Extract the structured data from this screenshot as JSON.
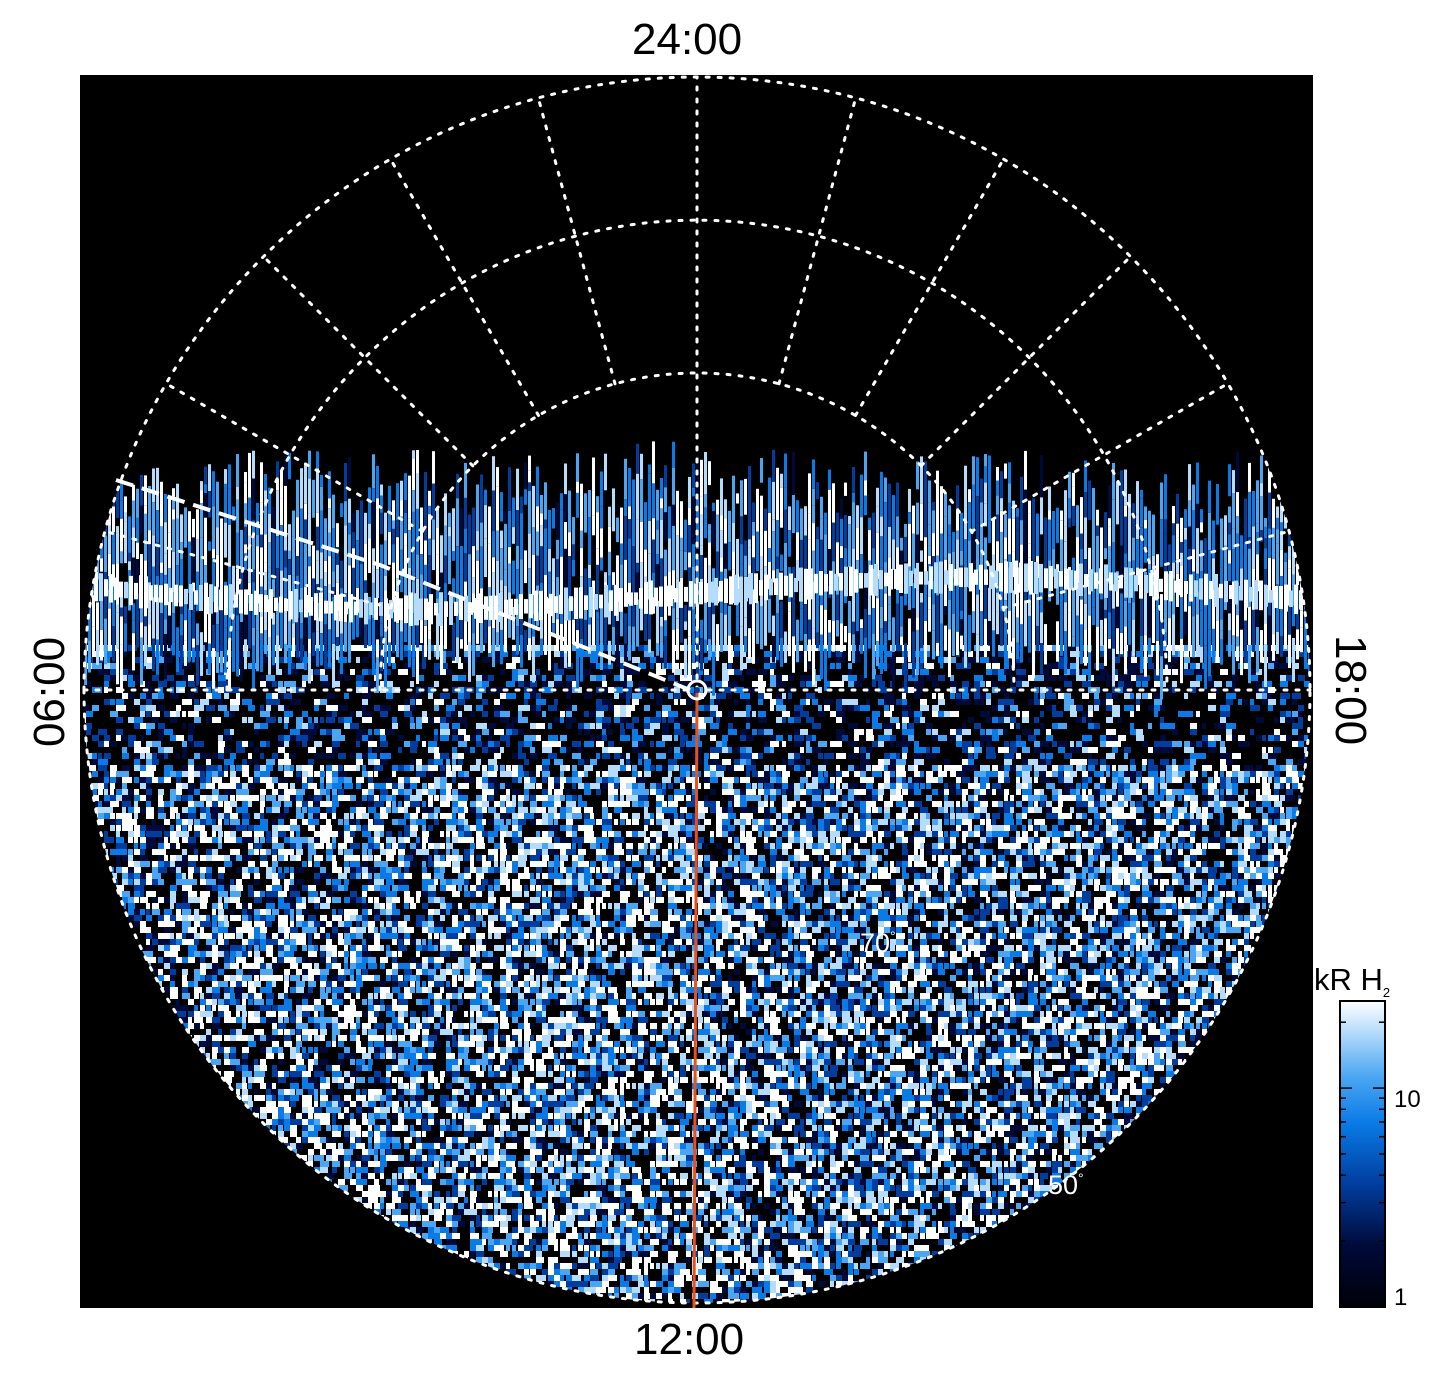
{
  "figure": {
    "local_time_labels": {
      "top": "24:00",
      "bottom": "12:00",
      "left": "06:00",
      "right": "18:00"
    },
    "latitude_labels": {
      "lat_70": "70",
      "lat_50": "50",
      "degree_symbol": "°"
    },
    "colorbar": {
      "title_main": "kR H",
      "title_sub": "2",
      "scale": "log",
      "range": [
        1,
        25
      ],
      "tick_labels": [
        "10",
        "1"
      ],
      "colors": [
        "#000008",
        "#000a3a",
        "#003d9e",
        "#0a7ae6",
        "#4aa6f2",
        "#b6dcfb",
        "#ffffff"
      ]
    },
    "colors": {
      "background": "#000000",
      "grid": "#ffffff",
      "meridian_line": "#e8501c"
    },
    "grid": "dotted",
    "projection": "polar, latitude rings and local-time meridians"
  }
}
